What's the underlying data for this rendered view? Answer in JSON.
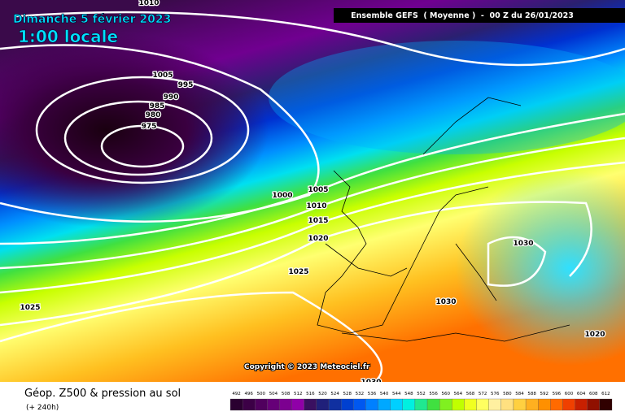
{
  "header": {
    "date": "Dimanche 5 février 2023",
    "time": "1:00 locale",
    "run": "Ensemble GEFS  ( Moyenne )  -  00 Z du 26/01/2023"
  },
  "isobar_labels": [
    1010,
    1005,
    995,
    990,
    985,
    980,
    975,
    1000,
    1005,
    1010,
    1015,
    1020,
    1025,
    1025,
    1030,
    1030,
    1020,
    1030
  ],
  "copyright": "Copyright © 2023 Meteociel.fr",
  "footer": {
    "title": "Géop. Z500 & pression au sol",
    "lead": "(+ 240h)"
  },
  "legend": {
    "levels": [
      492,
      496,
      500,
      504,
      508,
      512,
      516,
      520,
      524,
      528,
      532,
      536,
      540,
      544,
      548,
      552,
      556,
      560,
      564,
      568,
      572,
      576,
      580,
      584,
      588,
      592,
      596,
      600,
      604,
      608,
      612
    ],
    "colors": [
      "#2a0030",
      "#3c0046",
      "#50005e",
      "#660078",
      "#7c0090",
      "#9000a8",
      "#3a1060",
      "#20207a",
      "#1030a0",
      "#0040d0",
      "#0058f0",
      "#0080ff",
      "#00a8ff",
      "#00d0ff",
      "#00f0e0",
      "#20e890",
      "#40e040",
      "#80f020",
      "#c0ff00",
      "#f0ff20",
      "#ffff60",
      "#fff0a0",
      "#ffe080",
      "#ffd040",
      "#ffb020",
      "#ff9000",
      "#ff6a00",
      "#f04000",
      "#c82000",
      "#901000",
      "#300000"
    ]
  }
}
